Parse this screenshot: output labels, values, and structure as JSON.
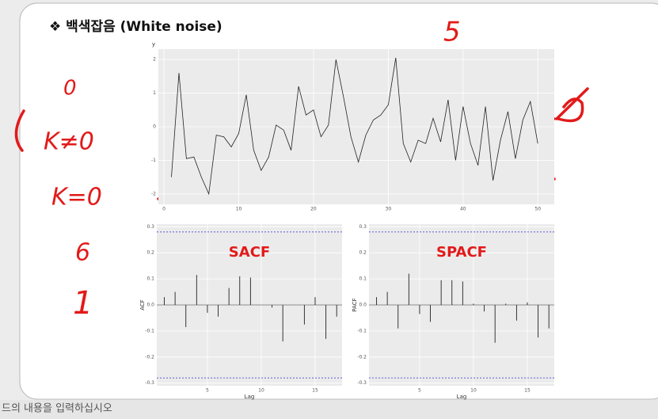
{
  "slide": {
    "title": "❖ 백색잡음 (White noise)",
    "footer": "드의 내용을 입력하십시오",
    "annotations": [
      "5",
      "0",
      "K≠0",
      "K=0",
      "6",
      "1"
    ]
  },
  "chart_data": [
    {
      "type": "line",
      "y_label": "y",
      "color": "#222222",
      "x": [
        1,
        2,
        3,
        4,
        5,
        6,
        7,
        8,
        9,
        10,
        11,
        12,
        13,
        14,
        15,
        16,
        17,
        18,
        19,
        20,
        21,
        22,
        23,
        24,
        25,
        26,
        27,
        28,
        29,
        30,
        31,
        32,
        33,
        34,
        35,
        36,
        37,
        38,
        39,
        40,
        41,
        42,
        43,
        44,
        45,
        46,
        47,
        48,
        49,
        50
      ],
      "values": [
        -1.5,
        1.6,
        -0.95,
        -0.9,
        -1.5,
        -2.0,
        -0.25,
        -0.3,
        -0.6,
        -0.2,
        0.95,
        -0.7,
        -1.3,
        -0.9,
        0.05,
        -0.1,
        -0.7,
        1.2,
        0.35,
        0.5,
        -0.3,
        0.05,
        2.0,
        0.9,
        -0.3,
        -1.05,
        -0.25,
        0.2,
        0.35,
        0.65,
        2.05,
        -0.5,
        -1.05,
        -0.4,
        -0.5,
        0.25,
        -0.45,
        0.8,
        -1.0,
        0.6,
        -0.5,
        -1.15,
        0.6,
        -1.6,
        -0.4,
        0.45,
        -0.95,
        0.2,
        0.75,
        -0.5
      ],
      "xlim": [
        -0.75,
        52.2
      ],
      "ylim": [
        -2.31,
        2.31
      ],
      "xticks": [
        0,
        10,
        20,
        30,
        40,
        50
      ],
      "yticks": [
        -2,
        -1,
        0,
        1,
        2
      ],
      "grid": true
    },
    {
      "type": "bar",
      "overlay_label": "SACF",
      "x_label": "Lag",
      "y_label": "ACF",
      "color": "#222222",
      "limit_color": "#2b2bd6",
      "x": [
        1,
        2,
        3,
        4,
        5,
        6,
        7,
        8,
        9,
        10,
        11,
        12,
        13,
        14,
        15,
        16,
        17
      ],
      "values": [
        0.03,
        0.05,
        -0.085,
        0.115,
        -0.03,
        -0.045,
        0.065,
        0.11,
        0.105,
        0.0,
        -0.01,
        -0.14,
        0.0,
        -0.075,
        0.03,
        -0.13,
        -0.045
      ],
      "limits": [
        -0.28,
        0.28
      ],
      "xlim": [
        0.3,
        17.5
      ],
      "ylim": [
        -0.31,
        0.31
      ],
      "xticks": [
        5,
        10,
        15
      ],
      "yticks": [
        -0.3,
        -0.2,
        -0.1,
        {
          "value": 0,
          "label": "0.0"
        },
        0.1,
        0.2,
        0.3
      ],
      "grid": true
    },
    {
      "type": "bar",
      "overlay_label": "SPACF",
      "x_label": "Lag",
      "y_label": "PACF",
      "color": "#222222",
      "limit_color": "#2b2bd6",
      "x": [
        1,
        2,
        3,
        4,
        5,
        6,
        7,
        8,
        9,
        10,
        11,
        12,
        13,
        14,
        15,
        16,
        17
      ],
      "values": [
        0.03,
        0.05,
        -0.09,
        0.12,
        -0.035,
        -0.065,
        0.095,
        0.095,
        0.09,
        0.005,
        -0.025,
        -0.145,
        0.005,
        -0.06,
        0.01,
        -0.125,
        -0.09
      ],
      "limits": [
        -0.28,
        0.28
      ],
      "xlim": [
        0.3,
        17.5
      ],
      "ylim": [
        -0.31,
        0.31
      ],
      "xticks": [
        5,
        10,
        15
      ],
      "yticks": [
        -0.3,
        -0.2,
        -0.1,
        {
          "value": 0,
          "label": "0.0"
        },
        0.1,
        0.2,
        0.3
      ],
      "grid": true
    }
  ]
}
